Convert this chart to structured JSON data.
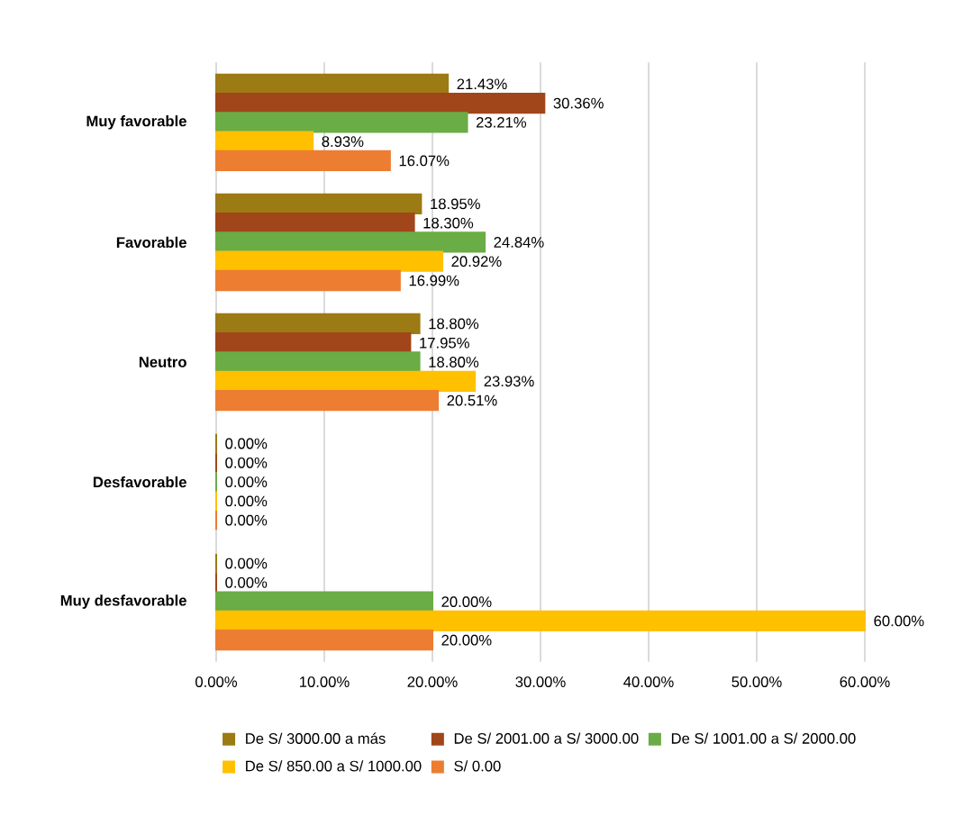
{
  "chart_data": {
    "type": "bar",
    "orientation": "horizontal",
    "categories": [
      "Muy favorable",
      "Favorable",
      "Neutro",
      "Desfavorable",
      "Muy desfavorable"
    ],
    "series": [
      {
        "name": "De S/ 3000.00 a más",
        "color": "#9c7a14",
        "values": [
          21.43,
          18.95,
          18.8,
          0.0,
          0.0
        ],
        "value_labels": [
          "21.43%",
          "18.95%",
          "18.80%",
          "0.00%",
          "0.00%"
        ]
      },
      {
        "name": "De S/ 2001.00 a S/ 3000.00",
        "color": "#a0461a",
        "values": [
          30.36,
          18.3,
          17.95,
          0.0,
          0.0
        ],
        "value_labels": [
          "30.36%",
          "18.30%",
          "17.95%",
          "0.00%",
          "0.00%"
        ]
      },
      {
        "name": "De S/ 1001.00 a S/ 2000.00",
        "color": "#6aac46",
        "values": [
          23.21,
          24.84,
          18.8,
          0.0,
          20.0
        ],
        "value_labels": [
          "23.21%",
          "24.84%",
          "18.80%",
          "0.00%",
          "20.00%"
        ]
      },
      {
        "name": "De S/ 850.00 a S/ 1000.00",
        "color": "#ffc000",
        "values": [
          8.93,
          20.92,
          23.93,
          0.0,
          60.0
        ],
        "value_labels": [
          "8.93%",
          "20.92%",
          "23.93%",
          "0.00%",
          "60.00%"
        ]
      },
      {
        "name": "S/ 0.00",
        "color": "#ed7d31",
        "values": [
          16.07,
          16.99,
          20.51,
          0.0,
          20.0
        ],
        "value_labels": [
          "16.07%",
          "16.99%",
          "20.51%",
          "0.00%",
          "20.00%"
        ]
      }
    ],
    "xlim": [
      0,
      60
    ],
    "xticks": [
      {
        "value": 0,
        "label": "0.00%"
      },
      {
        "value": 10,
        "label": "10.00%"
      },
      {
        "value": 20,
        "label": "20.00%"
      },
      {
        "value": 30,
        "label": "30.00%"
      },
      {
        "value": 40,
        "label": "40.00%"
      },
      {
        "value": 50,
        "label": "50.00%"
      },
      {
        "value": 60,
        "label": "60.00%"
      }
    ],
    "grid": "x",
    "legend": "bottom"
  }
}
